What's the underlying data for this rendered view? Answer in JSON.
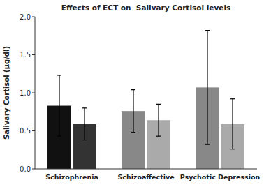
{
  "chart_data": {
    "type": "bar",
    "title": "Effects of ECT on  Salivary Cortisol levels",
    "y_label": "Salivary Cortisol (μg/dl)",
    "categories": [
      "Schizophrenia",
      "Schizoaffective",
      "Psychotic Depression"
    ],
    "series": [
      {
        "colors": [
          "#111111",
          "#888888",
          "#888888"
        ],
        "values": [
          0.83,
          0.76,
          1.07
        ],
        "errors": [
          0.4,
          0.28,
          0.75
        ]
      },
      {
        "colors": [
          "#333333",
          "#aaaaaa",
          "#aaaaaa"
        ],
        "values": [
          0.59,
          0.64,
          0.59
        ],
        "errors": [
          0.21,
          0.21,
          0.33
        ]
      }
    ],
    "ylim": [
      0.0,
      2.0
    ],
    "yticks": [
      {
        "value": 0.0,
        "label": "0.0"
      },
      0.5,
      {
        "value": 1.0,
        "label": "1.0"
      },
      1.5,
      {
        "value": 2.0,
        "label": "2.0"
      }
    ],
    "grid": false
  }
}
